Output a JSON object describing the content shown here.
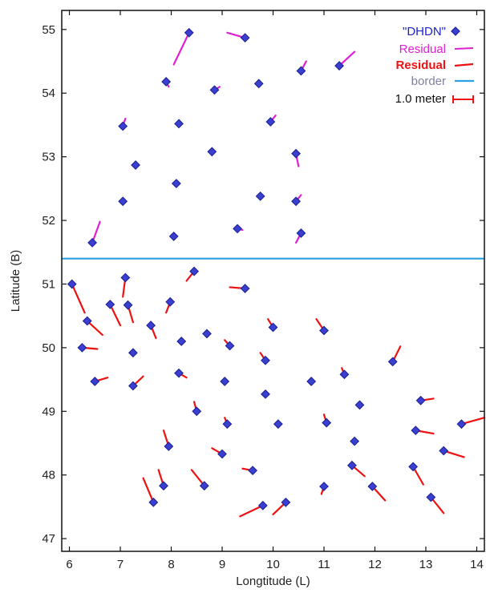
{
  "chart_data": {
    "type": "scatter",
    "xlabel": "Longtitude (L)",
    "ylabel": "Latitude (B)",
    "xlim": [
      5.85,
      14.15
    ],
    "ylim": [
      46.8,
      55.3
    ],
    "xticks": [
      6,
      7,
      8,
      9,
      10,
      11,
      12,
      13,
      14
    ],
    "yticks": [
      47,
      48,
      49,
      50,
      51,
      52,
      53,
      54,
      55
    ],
    "x_tick_labels": [
      "6",
      "7",
      "8",
      "9",
      "10",
      "11",
      "12",
      "13",
      "14"
    ],
    "y_tick_labels": [
      "47",
      "48",
      "49",
      "50",
      "51",
      "52",
      "53",
      "54",
      "55"
    ],
    "grid": false,
    "legend_position": "top-right",
    "colors": {
      "point_fill": "#3a3fd0",
      "point_edge": "#1a1f90",
      "residual_magenta": "#e020d0",
      "residual_red": "#ee1111",
      "border": "#2aa0e0",
      "axis": "#111111"
    },
    "legend": [
      {
        "label": "\"DHDN\"",
        "symbol": "diamond",
        "color": "#1a22cc"
      },
      {
        "label": "Residual",
        "symbol": "line",
        "color": "#e020d0"
      },
      {
        "label": "Residual",
        "symbol": "line",
        "color": "#ee1111"
      },
      {
        "label": "border",
        "symbol": "line",
        "color": "#2aa0e0",
        "text_color": "#8080a0"
      },
      {
        "label": "1.0 meter",
        "symbol": "scalebar",
        "color": "#ee1111",
        "text_color": "#111111"
      }
    ],
    "border_latitude": 51.4,
    "series": [
      {
        "name": "\"DHDN\"",
        "type": "points",
        "points": [
          [
            8.35,
            54.95
          ],
          [
            9.45,
            54.87
          ],
          [
            7.9,
            54.18
          ],
          [
            8.85,
            54.05
          ],
          [
            9.72,
            54.15
          ],
          [
            10.55,
            54.35
          ],
          [
            11.3,
            54.43
          ],
          [
            7.05,
            53.48
          ],
          [
            8.15,
            53.52
          ],
          [
            9.95,
            53.55
          ],
          [
            7.3,
            52.87
          ],
          [
            8.8,
            53.08
          ],
          [
            10.45,
            53.05
          ],
          [
            7.05,
            52.3
          ],
          [
            8.1,
            52.58
          ],
          [
            9.75,
            52.38
          ],
          [
            10.45,
            52.3
          ],
          [
            6.45,
            51.65
          ],
          [
            8.05,
            51.75
          ],
          [
            9.3,
            51.87
          ],
          [
            10.55,
            51.8
          ],
          [
            6.05,
            51.0
          ],
          [
            7.1,
            51.1
          ],
          [
            8.45,
            51.2
          ],
          [
            9.45,
            50.93
          ],
          [
            6.8,
            50.68
          ],
          [
            7.15,
            50.67
          ],
          [
            7.98,
            50.72
          ],
          [
            6.35,
            50.42
          ],
          [
            7.6,
            50.35
          ],
          [
            8.7,
            50.22
          ],
          [
            10.0,
            50.32
          ],
          [
            11.0,
            50.27
          ],
          [
            6.25,
            50.0
          ],
          [
            7.25,
            49.92
          ],
          [
            8.2,
            50.1
          ],
          [
            9.15,
            50.03
          ],
          [
            9.85,
            49.8
          ],
          [
            12.35,
            49.78
          ],
          [
            6.5,
            49.47
          ],
          [
            7.25,
            49.4
          ],
          [
            8.15,
            49.6
          ],
          [
            9.05,
            49.47
          ],
          [
            9.85,
            49.27
          ],
          [
            10.75,
            49.47
          ],
          [
            11.4,
            49.58
          ],
          [
            8.5,
            49.0
          ],
          [
            9.1,
            48.8
          ],
          [
            10.1,
            48.8
          ],
          [
            11.05,
            48.82
          ],
          [
            11.7,
            49.1
          ],
          [
            12.9,
            49.17
          ],
          [
            12.8,
            48.7
          ],
          [
            13.7,
            48.8
          ],
          [
            7.95,
            48.45
          ],
          [
            9.0,
            48.33
          ],
          [
            11.6,
            48.53
          ],
          [
            13.35,
            48.38
          ],
          [
            7.85,
            47.83
          ],
          [
            8.65,
            47.83
          ],
          [
            9.6,
            48.07
          ],
          [
            11.55,
            48.15
          ],
          [
            12.75,
            48.13
          ],
          [
            7.65,
            47.57
          ],
          [
            9.8,
            47.52
          ],
          [
            10.25,
            47.57
          ],
          [
            11.0,
            47.82
          ],
          [
            11.95,
            47.82
          ],
          [
            13.1,
            47.65
          ]
        ]
      },
      {
        "name": "Residual",
        "type": "vectors",
        "color": "#e020d0",
        "segments": [
          [
            8.35,
            54.95,
            8.05,
            54.45
          ],
          [
            9.45,
            54.87,
            9.1,
            54.95
          ],
          [
            7.9,
            54.18,
            7.95,
            54.1
          ],
          [
            8.85,
            54.05,
            8.95,
            54.1
          ],
          [
            10.55,
            54.35,
            10.65,
            54.5
          ],
          [
            11.3,
            54.43,
            11.6,
            54.65
          ],
          [
            7.05,
            53.48,
            7.1,
            53.6
          ],
          [
            9.95,
            53.55,
            10.05,
            53.65
          ],
          [
            10.45,
            53.05,
            10.5,
            52.85
          ],
          [
            10.45,
            52.3,
            10.55,
            52.4
          ],
          [
            6.45,
            51.65,
            6.6,
            51.98
          ],
          [
            9.3,
            51.87,
            9.4,
            51.85
          ],
          [
            10.55,
            51.8,
            10.45,
            51.65
          ]
        ]
      },
      {
        "name": "Residual",
        "type": "vectors",
        "color": "#ee1111",
        "segments": [
          [
            6.05,
            51.0,
            6.3,
            50.55
          ],
          [
            7.1,
            51.1,
            7.05,
            50.8
          ],
          [
            8.45,
            51.2,
            8.3,
            51.05
          ],
          [
            9.45,
            50.93,
            9.15,
            50.95
          ],
          [
            6.8,
            50.68,
            7.0,
            50.35
          ],
          [
            7.15,
            50.67,
            7.25,
            50.4
          ],
          [
            7.98,
            50.72,
            7.9,
            50.55
          ],
          [
            6.35,
            50.42,
            6.65,
            50.2
          ],
          [
            7.6,
            50.35,
            7.7,
            50.15
          ],
          [
            10.0,
            50.32,
            9.9,
            50.45
          ],
          [
            11.0,
            50.27,
            10.85,
            50.45
          ],
          [
            6.25,
            50.0,
            6.55,
            49.98
          ],
          [
            9.15,
            50.03,
            9.05,
            50.12
          ],
          [
            9.85,
            49.8,
            9.75,
            49.92
          ],
          [
            12.35,
            49.78,
            12.5,
            50.02
          ],
          [
            6.5,
            49.47,
            6.75,
            49.53
          ],
          [
            7.25,
            49.4,
            7.45,
            49.55
          ],
          [
            8.15,
            49.6,
            8.3,
            49.53
          ],
          [
            11.4,
            49.58,
            11.35,
            49.68
          ],
          [
            8.5,
            49.0,
            8.45,
            49.15
          ],
          [
            9.1,
            48.8,
            9.05,
            48.9
          ],
          [
            11.05,
            48.82,
            11.0,
            48.95
          ],
          [
            12.9,
            49.17,
            13.15,
            49.2
          ],
          [
            12.8,
            48.7,
            13.15,
            48.65
          ],
          [
            13.7,
            48.8,
            14.15,
            48.9
          ],
          [
            7.95,
            48.45,
            7.85,
            48.7
          ],
          [
            9.0,
            48.33,
            8.8,
            48.42
          ],
          [
            13.35,
            48.38,
            13.75,
            48.28
          ],
          [
            7.85,
            47.83,
            7.75,
            48.08
          ],
          [
            8.65,
            47.83,
            8.4,
            48.08
          ],
          [
            9.6,
            48.07,
            9.4,
            48.1
          ],
          [
            11.55,
            48.15,
            11.8,
            47.98
          ],
          [
            12.75,
            48.13,
            12.95,
            47.85
          ],
          [
            7.65,
            47.57,
            7.45,
            47.95
          ],
          [
            9.8,
            47.52,
            9.35,
            47.35
          ],
          [
            10.25,
            47.57,
            10.0,
            47.38
          ],
          [
            11.0,
            47.82,
            10.95,
            47.7
          ],
          [
            11.95,
            47.82,
            12.2,
            47.6
          ],
          [
            13.1,
            47.65,
            13.35,
            47.4
          ]
        ]
      },
      {
        "name": "border",
        "type": "hline",
        "color": "#2aa0e0",
        "y": 51.4
      }
    ]
  }
}
